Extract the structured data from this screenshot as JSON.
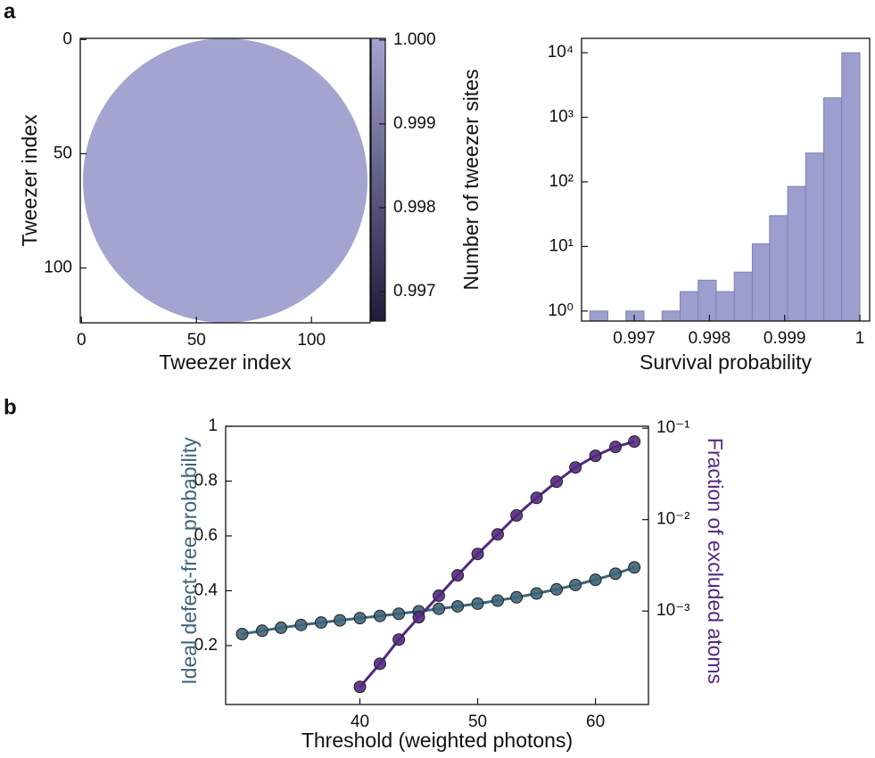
{
  "chart_data": [
    {
      "type": "heatmap",
      "label": "a",
      "xlabel": "Tweezer index",
      "ylabel": "Tweezer index",
      "xlim": [
        -0.5,
        125.5
      ],
      "ylim": [
        124,
        -0.5
      ],
      "xticks": [
        0,
        50,
        100
      ],
      "yticks": [
        0,
        50,
        100
      ],
      "colormap": [
        "#1e1c3b",
        "#a3a4d0"
      ],
      "colorbar": {
        "clim": [
          0.99665,
          1.00002
        ],
        "ticks": [
          {
            "value": 1,
            "label": "1.000"
          },
          0.999,
          0.998,
          0.997
        ]
      }
    },
    {
      "type": "histogram",
      "xlabel": "Survival probability",
      "ylabel": "Number of tweezer sites",
      "bins": [
        0.99641,
        0.99665,
        0.99689,
        0.99713,
        0.99737,
        0.99761,
        0.99785,
        0.99809,
        0.99833,
        0.99857,
        0.9988,
        0.99904,
        0.99928,
        0.99952,
        0.99976,
        1
      ],
      "counts": [
        1,
        0,
        1,
        0,
        1,
        2,
        3,
        2,
        4,
        11,
        30,
        85,
        280,
        2000,
        10000
      ],
      "color": "#9c9ecd",
      "xlim": [
        0.9963,
        1.00013
      ],
      "xticks": [
        0.997,
        0.998,
        0.999,
        1
      ],
      "ylim": [
        0.7,
        16700
      ],
      "log_y": true,
      "yticks": [
        {
          "value": 1,
          "label": "10⁰"
        },
        {
          "value": 10,
          "label": "10¹"
        },
        {
          "value": 100,
          "label": "10²"
        },
        {
          "value": 1000,
          "label": "10³"
        },
        {
          "value": 10000,
          "label": "10⁴"
        }
      ]
    },
    {
      "type": "line",
      "label": "b",
      "xlabel": "Threshold (weighted photons)",
      "ylabel": "Ideal defect-free probability",
      "y2label": "Fraction of excluded atoms",
      "x": [
        30,
        31.7,
        33.3,
        35,
        36.7,
        38.3,
        40,
        41.7,
        43.3,
        45,
        46.7,
        48.3,
        50,
        51.7,
        53.3,
        55,
        56.7,
        58.3,
        60,
        61.7,
        63.3
      ],
      "xlim": [
        28.6,
        64.5
      ],
      "xticks": [
        40,
        50,
        60
      ],
      "ylim": [
        -0.015,
        1
      ],
      "yticks": [
        0.2,
        0.4,
        0.6,
        0.8,
        1
      ],
      "y2lim": [
        9.5e-05,
        0.105
      ],
      "y2log": true,
      "y2ticks": [
        {
          "value": 0.1,
          "label": "10⁻¹"
        },
        {
          "value": 0.01,
          "label": "10⁻²"
        },
        {
          "value": 0.001,
          "label": "10⁻³"
        }
      ],
      "series": [
        {
          "color": "#3d6478",
          "values": [
            0.242,
            0.254,
            0.265,
            0.275,
            0.284,
            0.292,
            0.3,
            0.308,
            0.316,
            0.325,
            0.334,
            0.343,
            0.353,
            0.364,
            0.376,
            0.39,
            0.405,
            0.421,
            0.44,
            0.462,
            0.485
          ]
        },
        {
          "color": "#53297f",
          "axis": "y2",
          "values": [
            null,
            null,
            null,
            null,
            null,
            null,
            0.000148,
            0.000265,
            0.000487,
            0.000855,
            0.00147,
            0.00246,
            0.00421,
            0.0069,
            0.0111,
            0.0173,
            0.026,
            0.0372,
            0.0499,
            0.0624,
            0.0714
          ]
        }
      ]
    }
  ]
}
